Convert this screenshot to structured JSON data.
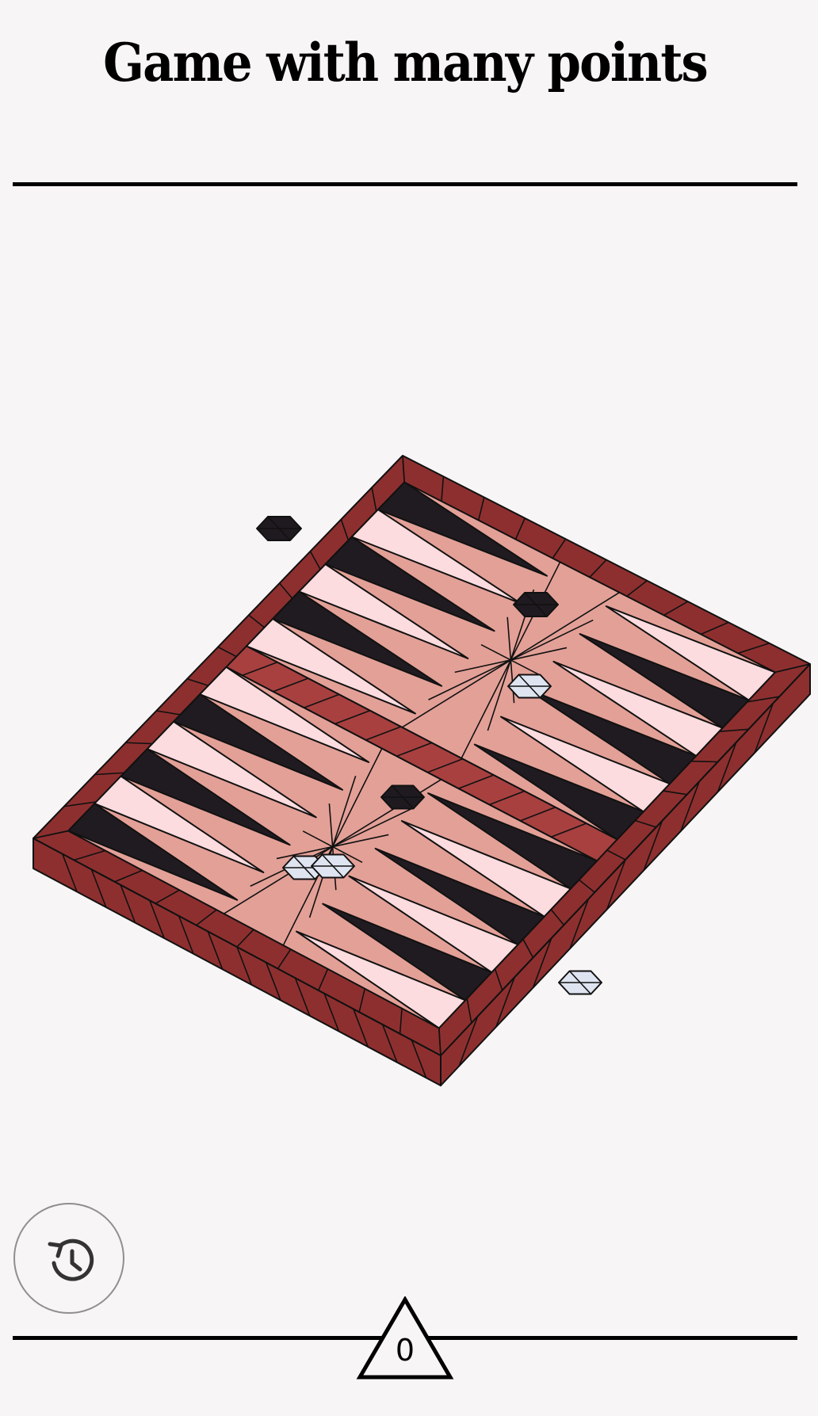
{
  "header": {
    "title": "Game with many points"
  },
  "board": {
    "colors": {
      "frame": "#8e2f2f",
      "frame_light": "#a84040",
      "field": "#e3a097",
      "point_dark": "#201b20",
      "point_light": "#fddcdf",
      "checker_dark": "#1f1a1f",
      "checker_light": "#dfe4f1",
      "outline": "#111111"
    }
  },
  "controls": {
    "history_icon": "history-icon"
  },
  "score": {
    "value": "0"
  }
}
